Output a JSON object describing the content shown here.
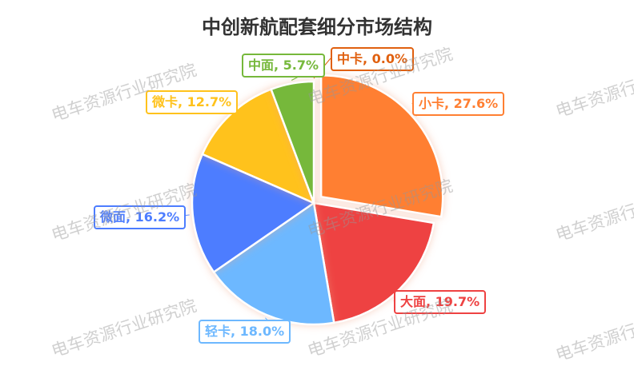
{
  "chart_data": {
    "type": "pie",
    "title": "中创新航配套细分市场结构",
    "watermark": "电车资源行业研究院",
    "start_angle": "top",
    "direction": "clockwise",
    "exploded": "小卡",
    "slices": [
      {
        "label": "中卡",
        "value": 0.0,
        "display": "中卡, 0.0%",
        "color": "#E0600F"
      },
      {
        "label": "小卡",
        "value": 27.6,
        "display": "小卡, 27.6%",
        "color": "#FF7F32"
      },
      {
        "label": "大面",
        "value": 19.7,
        "display": "大面, 19.7%",
        "color": "#EE4242"
      },
      {
        "label": "轻卡",
        "value": 18.0,
        "display": "轻卡, 18.0%",
        "color": "#6DB8FF"
      },
      {
        "label": "微面",
        "value": 16.2,
        "display": "微面, 16.2%",
        "color": "#4D7DFF"
      },
      {
        "label": "微卡",
        "value": 12.7,
        "display": "微卡, 12.7%",
        "color": "#FFC21C"
      },
      {
        "label": "中面",
        "value": 5.7,
        "display": "中面, 5.7%",
        "color": "#76B83B"
      }
    ]
  }
}
